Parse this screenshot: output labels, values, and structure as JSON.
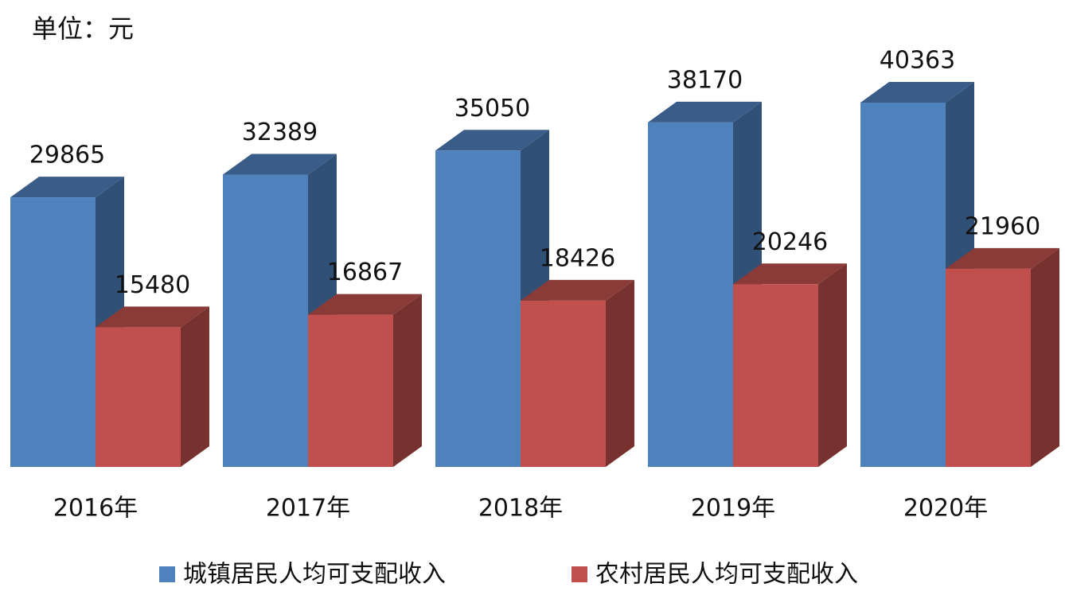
{
  "chart_data": {
    "type": "bar3d",
    "subtitle": "单位：元",
    "categories": [
      "2016年",
      "2017年",
      "2018年",
      "2019年",
      "2020年"
    ],
    "series": [
      {
        "name": "城镇居民人均可支配收入",
        "color": "#4f81bd",
        "values": [
          29865,
          32389,
          35050,
          38170,
          40363
        ]
      },
      {
        "name": "农村居民人均可支配收入",
        "color": "#c0504d",
        "values": [
          15480,
          16867,
          18426,
          20246,
          21960
        ]
      }
    ],
    "legend": "bottom"
  }
}
